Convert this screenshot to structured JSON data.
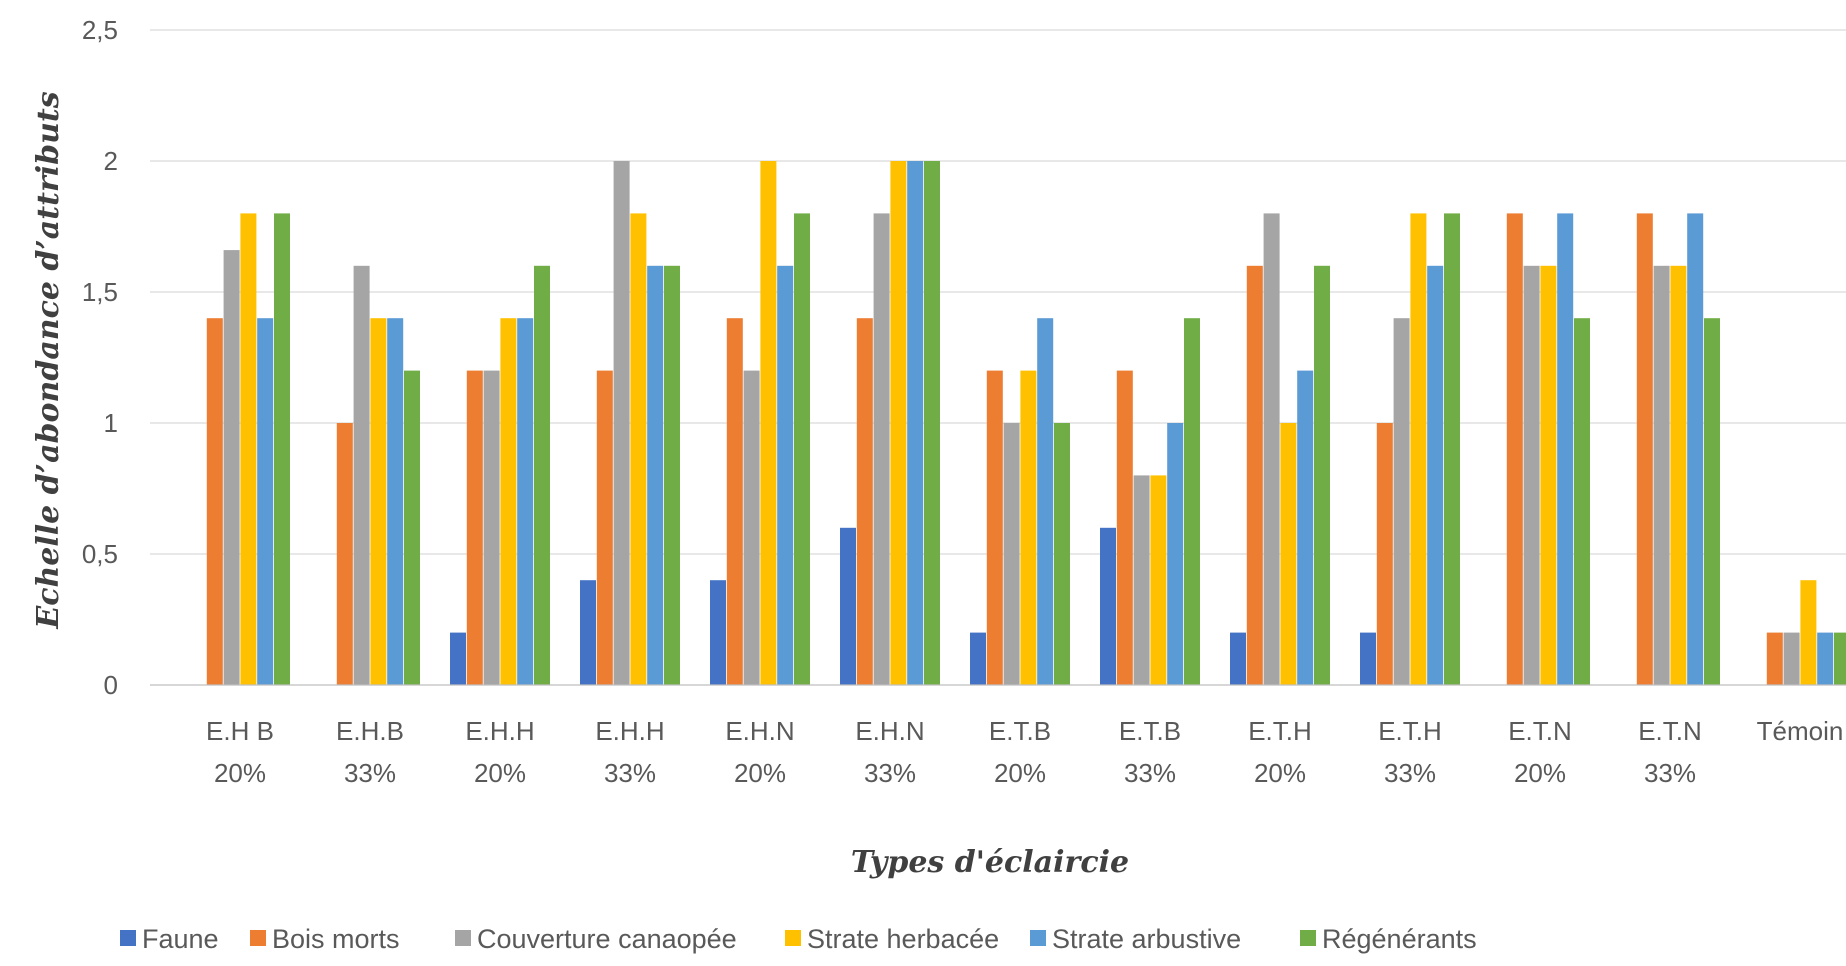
{
  "chart_data": {
    "type": "bar",
    "ylabel": "Echelle d’abondance d’attributs",
    "xlabel": "Types d'éclaircie",
    "ylim": [
      0,
      2.5
    ],
    "yticks": [
      0,
      0.5,
      1,
      1.5,
      2,
      2.5
    ],
    "ytick_labels": [
      "0",
      "0,5",
      "1",
      "1,5",
      "2",
      "2,5"
    ],
    "grid": true,
    "legend_position": "bottom",
    "categories": [
      [
        "E.H B",
        "20%"
      ],
      [
        "E.H.B",
        "33%"
      ],
      [
        "E.H.H",
        "20%"
      ],
      [
        "E.H.H",
        "33%"
      ],
      [
        "E.H.N",
        "20%"
      ],
      [
        "E.H.N",
        "33%"
      ],
      [
        "E.T.B",
        "20%"
      ],
      [
        "E.T.B",
        "33%"
      ],
      [
        "E.T.H",
        "20%"
      ],
      [
        "E.T.H",
        "33%"
      ],
      [
        "E.T.N",
        "20%"
      ],
      [
        "E.T.N",
        "33%"
      ],
      [
        "Témoin"
      ]
    ],
    "series": [
      {
        "name": "Faune",
        "color": "#4472c4",
        "values": [
          0,
          0,
          0.2,
          0.4,
          0.4,
          0.6,
          0.2,
          0.6,
          0.2,
          0.2,
          0,
          0,
          0
        ]
      },
      {
        "name": "Bois morts",
        "color": "#ed7d31",
        "values": [
          1.4,
          1.0,
          1.2,
          1.2,
          1.4,
          1.4,
          1.2,
          1.2,
          1.6,
          1.0,
          1.8,
          1.8,
          0.2
        ]
      },
      {
        "name": "Couverture canaopée",
        "color": "#a5a5a5",
        "values": [
          1.66,
          1.6,
          1.2,
          2.0,
          1.2,
          1.8,
          1.0,
          0.8,
          1.8,
          1.4,
          1.6,
          1.6,
          0.2
        ]
      },
      {
        "name": "Strate herbacée",
        "color": "#ffc000",
        "values": [
          1.8,
          1.4,
          1.4,
          1.8,
          2.0,
          2.0,
          1.2,
          0.8,
          1.0,
          1.8,
          1.6,
          1.6,
          0.4
        ]
      },
      {
        "name": "Strate arbustive",
        "color": "#5b9bd5",
        "values": [
          1.4,
          1.4,
          1.4,
          1.6,
          1.6,
          2.0,
          1.4,
          1.0,
          1.2,
          1.6,
          1.8,
          1.8,
          0.2
        ]
      },
      {
        "name": "Régénérants",
        "color": "#70ad47",
        "values": [
          1.8,
          1.2,
          1.6,
          1.6,
          1.8,
          2.0,
          1.0,
          1.4,
          1.6,
          1.8,
          1.4,
          1.4,
          0.2
        ]
      }
    ]
  }
}
